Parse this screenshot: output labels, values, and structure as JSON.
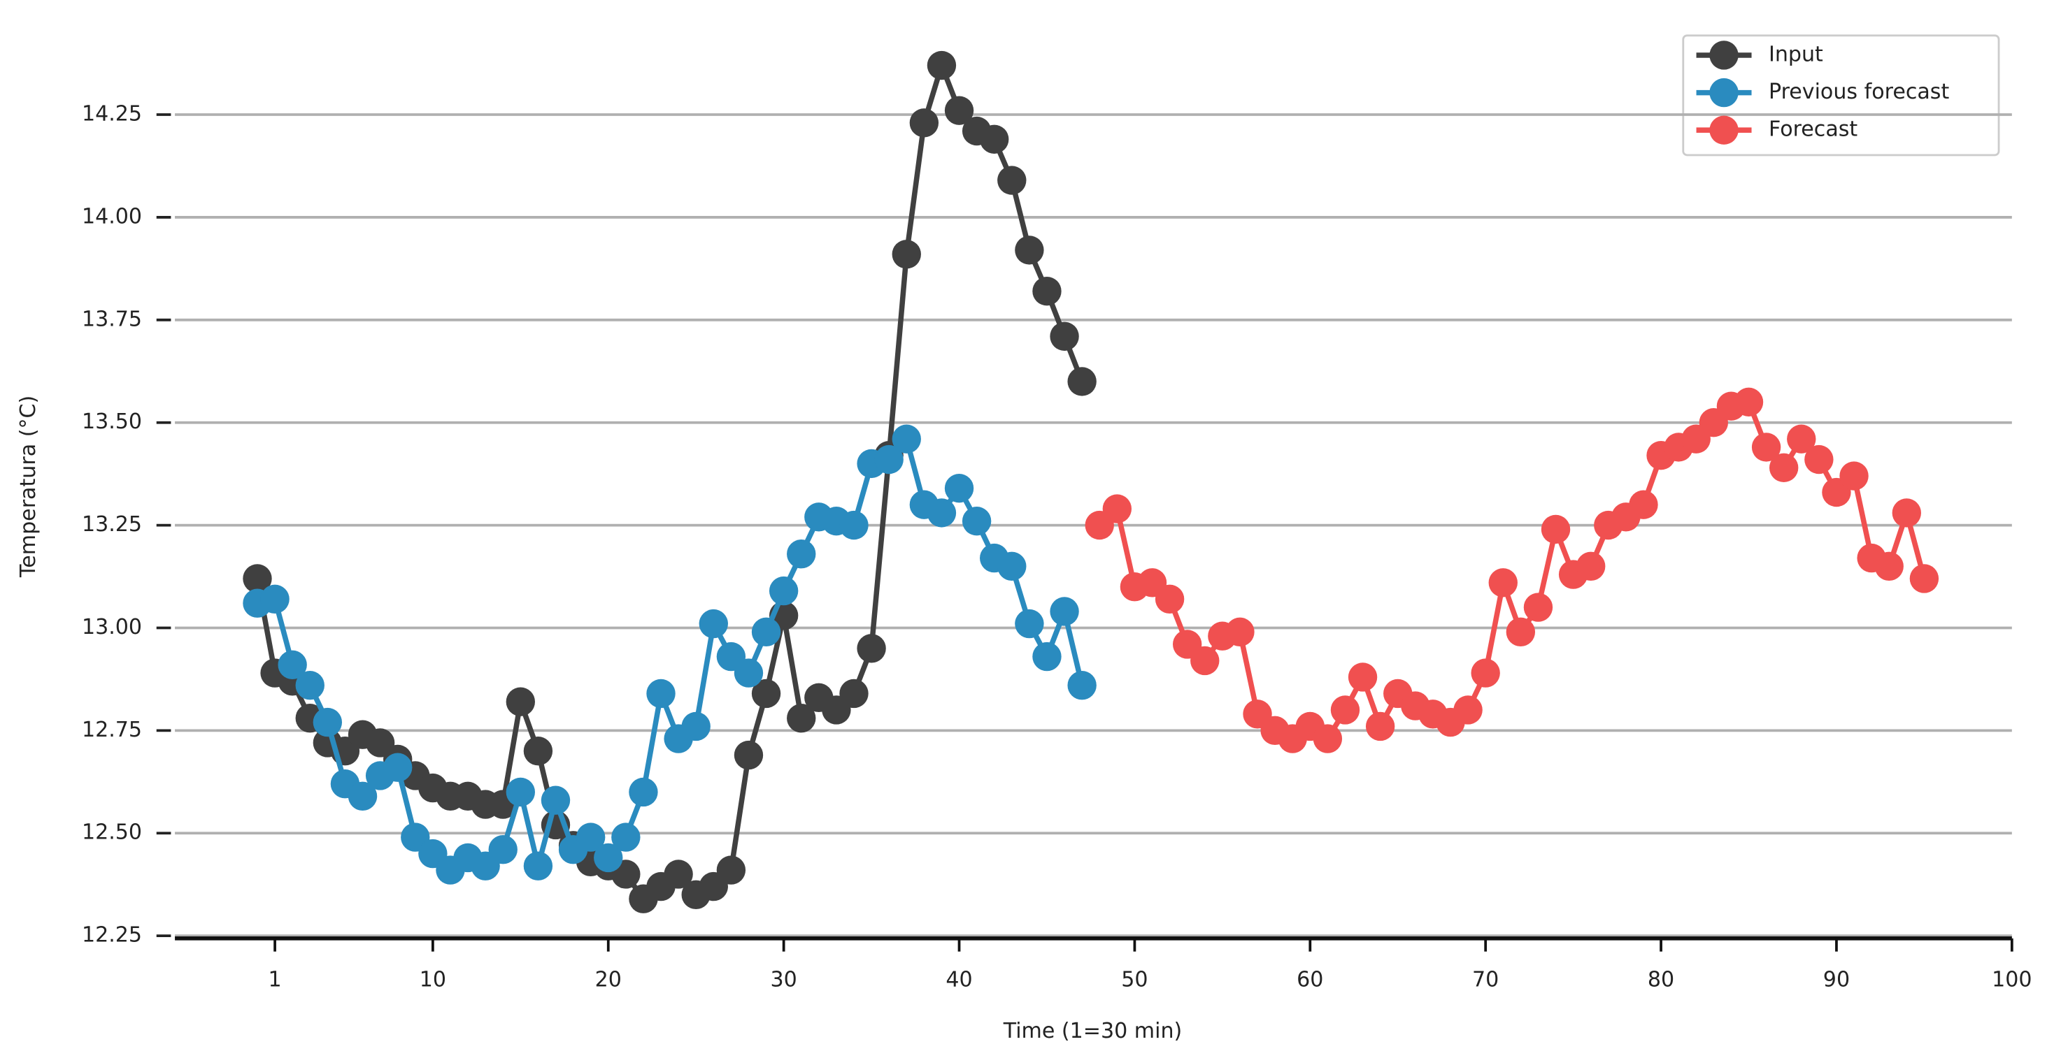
{
  "chart_data": {
    "type": "line",
    "x_label": "Time (1=30 min)",
    "y_label": "Temperatura (°C)",
    "xlim": [
      -4.7,
      100
    ],
    "ylim": [
      12.25,
      14.43
    ],
    "xticks": [
      1,
      10,
      20,
      30,
      40,
      50,
      60,
      70,
      80,
      90,
      100
    ],
    "yticks": [
      12.25,
      {
        "value": 12.5,
        "label": "12.50"
      },
      12.75,
      {
        "value": 13,
        "label": "13.00"
      },
      13.25,
      {
        "value": 13.5,
        "label": "13.50"
      },
      13.75,
      {
        "value": 14,
        "label": "14.00"
      },
      14.25
    ],
    "grid": true,
    "legend": "upper right",
    "series": [
      {
        "name": "Input",
        "color": "#404040",
        "x": [
          0,
          1,
          2,
          3,
          4,
          5,
          6,
          7,
          8,
          9,
          10,
          11,
          12,
          13,
          14,
          15,
          16,
          17,
          18,
          19,
          20,
          21,
          22,
          23,
          24,
          25,
          26,
          27,
          28,
          29,
          30,
          31,
          32,
          33,
          34,
          35,
          36,
          37,
          38,
          39,
          40,
          41,
          42,
          43,
          44,
          45,
          46,
          47
        ],
        "values": [
          13.12,
          12.89,
          12.87,
          12.78,
          12.72,
          12.7,
          12.74,
          12.72,
          12.68,
          12.64,
          12.61,
          12.59,
          12.59,
          12.57,
          12.57,
          12.82,
          12.7,
          12.52,
          12.47,
          12.43,
          12.42,
          12.4,
          12.34,
          12.37,
          12.4,
          12.35,
          12.37,
          12.41,
          12.69,
          12.84,
          13.03,
          12.78,
          12.83,
          12.8,
          12.84,
          12.95,
          13.42,
          13.91,
          14.23,
          14.37,
          14.26,
          14.21,
          14.19,
          14.09,
          13.92,
          13.82,
          13.71,
          13.6
        ]
      },
      {
        "name": "Previous forecast",
        "color": "#2a8bbf",
        "x": [
          0,
          1,
          2,
          3,
          4,
          5,
          6,
          7,
          8,
          9,
          10,
          11,
          12,
          13,
          14,
          15,
          16,
          17,
          18,
          19,
          20,
          21,
          22,
          23,
          24,
          25,
          26,
          27,
          28,
          29,
          30,
          31,
          32,
          33,
          34,
          35,
          36,
          37,
          38,
          39,
          40,
          41,
          42,
          43,
          44,
          45,
          46,
          47
        ],
        "values": [
          13.06,
          13.07,
          12.91,
          12.86,
          12.77,
          12.62,
          12.59,
          12.64,
          12.66,
          12.49,
          12.45,
          12.41,
          12.44,
          12.42,
          12.46,
          12.6,
          12.42,
          12.58,
          12.46,
          12.49,
          12.44,
          12.49,
          12.6,
          12.84,
          12.73,
          12.76,
          13.01,
          12.93,
          12.89,
          12.99,
          13.09,
          13.18,
          13.27,
          13.26,
          13.25,
          13.4,
          13.41,
          13.46,
          13.3,
          13.28,
          13.34,
          13.26,
          13.17,
          13.15,
          13.01,
          12.93,
          13.04,
          12.86
        ]
      },
      {
        "name": "Forecast",
        "color": "#f05050",
        "x": [
          48,
          49,
          50,
          51,
          52,
          53,
          54,
          55,
          56,
          57,
          58,
          59,
          60,
          61,
          62,
          63,
          64,
          65,
          66,
          67,
          68,
          69,
          70,
          71,
          72,
          73,
          74,
          75,
          76,
          77,
          78,
          79,
          80,
          81,
          82,
          83,
          84,
          85,
          86,
          87,
          88,
          89,
          90,
          91,
          92,
          93,
          94,
          95
        ],
        "values": [
          13.25,
          13.29,
          13.1,
          13.11,
          13.07,
          12.96,
          12.92,
          12.98,
          12.99,
          12.79,
          12.75,
          12.73,
          12.76,
          12.73,
          12.8,
          12.88,
          12.76,
          12.84,
          12.81,
          12.79,
          12.77,
          12.8,
          12.89,
          13.11,
          12.99,
          13.05,
          13.24,
          13.13,
          13.15,
          13.25,
          13.27,
          13.3,
          13.42,
          13.44,
          13.46,
          13.5,
          13.54,
          13.55,
          13.44,
          13.39,
          13.46,
          13.41,
          13.33,
          13.37,
          13.17,
          13.15,
          13.28,
          13.12
        ]
      }
    ]
  }
}
